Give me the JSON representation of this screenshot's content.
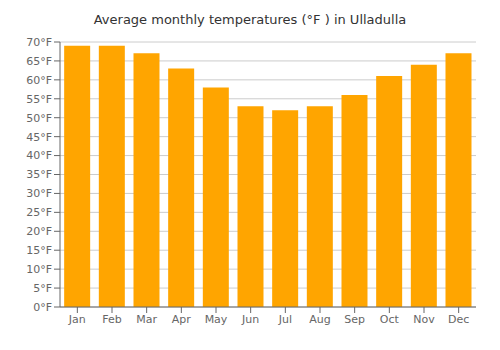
{
  "chart_data": {
    "type": "bar",
    "title": "Average monthly temperatures (°F ) in Ulladulla",
    "categories": [
      "Jan",
      "Feb",
      "Mar",
      "Apr",
      "May",
      "Jun",
      "Jul",
      "Aug",
      "Sep",
      "Oct",
      "Nov",
      "Dec"
    ],
    "values": [
      69,
      69,
      67,
      63,
      58,
      53,
      52,
      53,
      56,
      61,
      64,
      67
    ],
    "color": "#FFA500",
    "ylim": [
      0,
      70
    ],
    "yticks": [
      {
        "value": 0,
        "label": "0°F"
      },
      {
        "value": 5,
        "label": "5°F"
      },
      {
        "value": 10,
        "label": "10°F"
      },
      {
        "value": 15,
        "label": "15°F"
      },
      {
        "value": 20,
        "label": "20°F"
      },
      {
        "value": 25,
        "label": "25°F"
      },
      {
        "value": 30,
        "label": "30°F"
      },
      {
        "value": 35,
        "label": "35°F"
      },
      {
        "value": 40,
        "label": "40°F"
      },
      {
        "value": 45,
        "label": "45°F"
      },
      {
        "value": 50,
        "label": "50°F"
      },
      {
        "value": 55,
        "label": "55°F"
      },
      {
        "value": 60,
        "label": "60°F"
      },
      {
        "value": 65,
        "label": "65°F"
      },
      {
        "value": 70,
        "label": "70°F"
      }
    ],
    "grid": true
  }
}
